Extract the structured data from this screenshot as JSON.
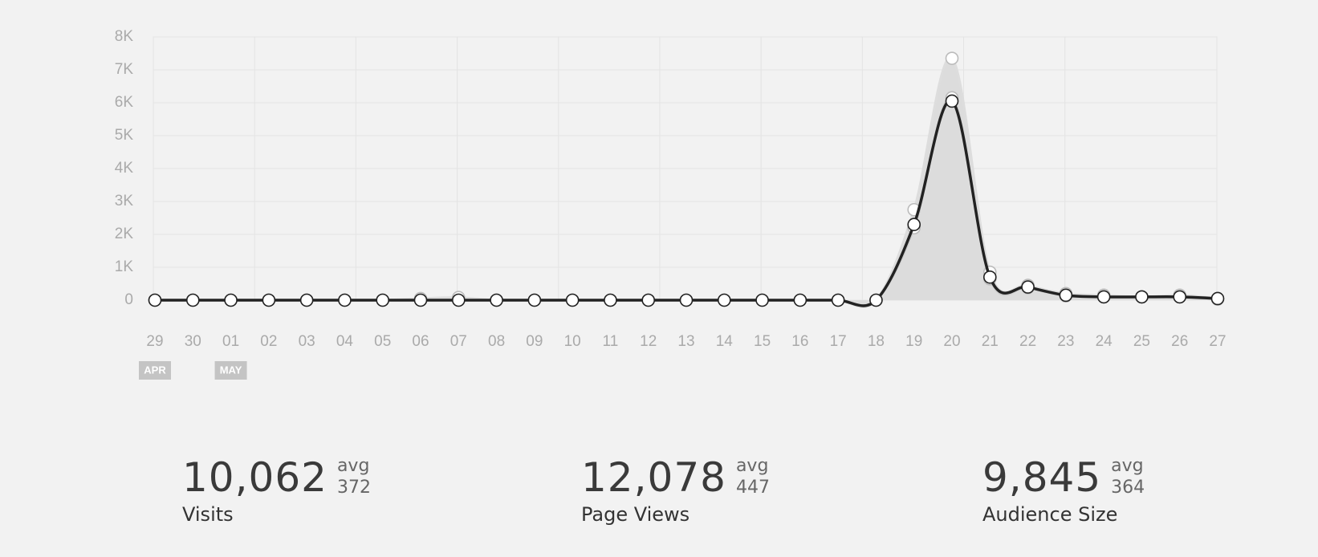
{
  "chart_data": {
    "type": "line",
    "categories": [
      "29",
      "30",
      "01",
      "02",
      "03",
      "04",
      "05",
      "06",
      "07",
      "08",
      "09",
      "10",
      "11",
      "12",
      "13",
      "14",
      "15",
      "16",
      "17",
      "18",
      "19",
      "20",
      "21",
      "22",
      "23",
      "24",
      "25",
      "26",
      "27"
    ],
    "month_markers": [
      "APR",
      null,
      "MAY",
      null,
      null,
      null,
      null,
      null,
      null,
      null,
      null,
      null,
      null,
      null,
      null,
      null,
      null,
      null,
      null,
      null,
      null,
      null,
      null,
      null,
      null,
      null,
      null,
      null,
      null
    ],
    "series": [
      {
        "color": "#dddddd",
        "values": [
          0,
          0,
          0,
          0,
          0,
          0,
          0,
          50,
          80,
          0,
          0,
          0,
          0,
          0,
          0,
          0,
          0,
          0,
          0,
          0,
          2750,
          7350,
          850,
          450,
          200,
          150,
          100,
          150,
          50
        ]
      },
      {
        "color": "#cccccc",
        "values": [
          0,
          0,
          0,
          0,
          0,
          0,
          0,
          0,
          0,
          0,
          0,
          0,
          0,
          0,
          0,
          0,
          0,
          0,
          0,
          0,
          2200,
          6150,
          650,
          380,
          130,
          100,
          100,
          100,
          30
        ]
      },
      {
        "color": "#222222",
        "values": [
          0,
          0,
          0,
          0,
          0,
          0,
          0,
          0,
          0,
          0,
          0,
          0,
          0,
          0,
          0,
          0,
          0,
          0,
          0,
          0,
          2300,
          6050,
          700,
          400,
          150,
          100,
          100,
          100,
          50
        ]
      }
    ],
    "ylim": [
      0,
      8000
    ],
    "yticks": [
      0,
      {
        "value": 1000,
        "label": "1K"
      },
      {
        "value": 2000,
        "label": "2K"
      },
      {
        "value": 3000,
        "label": "3K"
      },
      {
        "value": 4000,
        "label": "4K"
      },
      {
        "value": 5000,
        "label": "5K"
      },
      {
        "value": 6000,
        "label": "6K"
      },
      {
        "value": 7000,
        "label": "7K"
      },
      {
        "value": 8000,
        "label": "8K"
      }
    ],
    "grid": true
  },
  "stats": [
    {
      "value": "10,062",
      "avg_label": "avg",
      "avg": "372",
      "label": "Visits"
    },
    {
      "value": "12,078",
      "avg_label": "avg",
      "avg": "447",
      "label": "Page Views"
    },
    {
      "value": "9,845",
      "avg_label": "avg",
      "avg": "364",
      "label": "Audience Size"
    }
  ]
}
